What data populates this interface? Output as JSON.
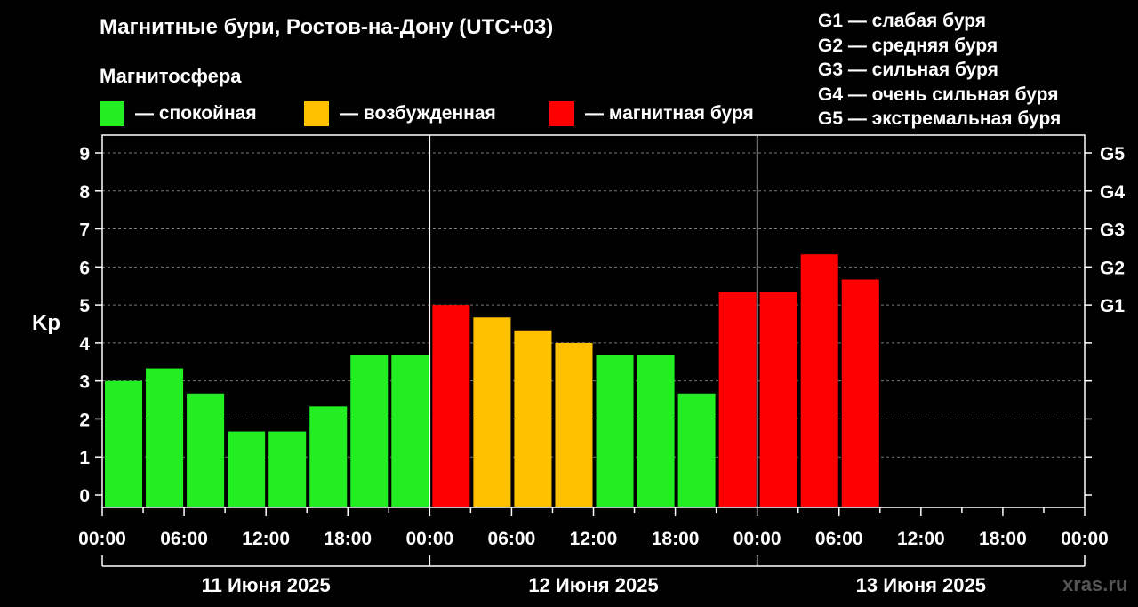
{
  "title": "Магнитные бури, Ростов-на-Дону (UTC+03)",
  "subtitle": "Магнитосфера",
  "legend": [
    {
      "label": "— спокойная",
      "color": "#22ee22"
    },
    {
      "label": "— возбужденная",
      "color": "#ffc000"
    },
    {
      "label": "— магнитная буря",
      "color": "#ff0000"
    }
  ],
  "g_legend": [
    "G1 — слабая буря",
    "G2 — средняя буря",
    "G3 — сильная буря",
    "G4 — очень сильная буря",
    "G5 — экстремальная буря"
  ],
  "watermark": "xras.ru",
  "chart_data": {
    "type": "bar",
    "ylabel": "Kp",
    "ylim": [
      0,
      9
    ],
    "y_ticks": [
      "0",
      "1",
      "2",
      "3",
      "4",
      "5",
      "6",
      "7",
      "8",
      "9"
    ],
    "right_ticks": [
      {
        "value": 5,
        "label": "G1"
      },
      {
        "value": 6,
        "label": "G2"
      },
      {
        "value": 7,
        "label": "G3"
      },
      {
        "value": 8,
        "label": "G4"
      },
      {
        "value": 9,
        "label": "G5"
      }
    ],
    "x_tick_labels": [
      "00:00",
      "06:00",
      "12:00",
      "18:00",
      "00:00",
      "06:00",
      "12:00",
      "18:00",
      "00:00",
      "06:00",
      "12:00",
      "18:00",
      "00:00"
    ],
    "days": [
      "11 Июня 2025",
      "12 Июня 2025",
      "13 Июня 2025"
    ],
    "grid": true,
    "colors": {
      "quiet": "#22ee22",
      "active": "#ffc000",
      "storm": "#ff0000"
    },
    "values": [
      3.0,
      3.33,
      2.67,
      1.67,
      1.67,
      2.33,
      3.67,
      3.67,
      5.0,
      4.67,
      4.33,
      4.0,
      3.67,
      3.67,
      2.67,
      5.33,
      5.33,
      6.33,
      5.67
    ],
    "levels": [
      "quiet",
      "quiet",
      "quiet",
      "quiet",
      "quiet",
      "quiet",
      "quiet",
      "quiet",
      "storm",
      "active",
      "active",
      "active",
      "quiet",
      "quiet",
      "quiet",
      "storm",
      "storm",
      "storm",
      "storm"
    ]
  }
}
